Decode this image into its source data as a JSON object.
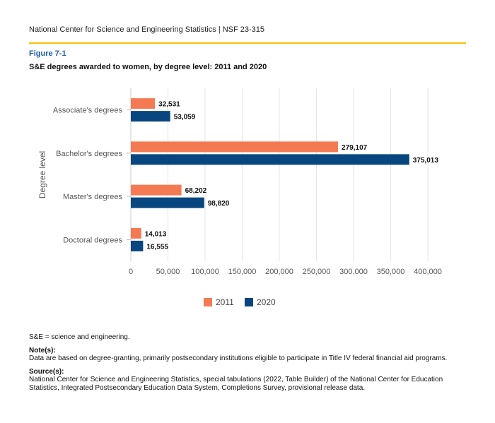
{
  "header": {
    "text": "National Center for Science and Engineering Statistics  |  NSF 23-315"
  },
  "figure": {
    "label": "Figure 7-1",
    "title": "S&E degrees awarded to women, by degree level: 2011 and 2020"
  },
  "colors": {
    "series_2011": "#f47a54",
    "series_2020": "#08467f",
    "grid": "#e6e6e6",
    "accent_rule": "#f2c200"
  },
  "chart_data": {
    "type": "bar",
    "orientation": "horizontal",
    "categories": [
      "Associate's degrees",
      "Bachelor's degrees",
      "Master's degrees",
      "Doctoral degrees"
    ],
    "series": [
      {
        "name": "2011",
        "values": [
          32531,
          279107,
          68202,
          14013
        ],
        "labels": [
          "32,531",
          "279,107",
          "68,202",
          "14,013"
        ]
      },
      {
        "name": "2020",
        "values": [
          53059,
          375013,
          98820,
          16555
        ],
        "labels": [
          "53,059",
          "375,013",
          "98,820",
          "16,555"
        ]
      }
    ],
    "ylabel": "Degree level",
    "xlabel": "",
    "xlim": [
      0,
      400000
    ],
    "xticks": [
      0,
      50000,
      100000,
      150000,
      200000,
      250000,
      300000,
      350000,
      400000
    ],
    "xtick_labels": [
      "0",
      "50,000",
      "100,000",
      "150,000",
      "200,000",
      "250,000",
      "300,000",
      "350,000",
      "400,000"
    ],
    "grid": true,
    "legend_placement": "bottom-center"
  },
  "footnotes": {
    "abbrev": "S&E = science and engineering.",
    "note_heading": "Note(s):",
    "note_text": "Data are based on degree-granting, primarily postsecondary institutions eligible to participate in Title IV federal financial aid programs.",
    "source_heading": "Source(s):",
    "source_text": "National Center for Science and Engineering Statistics, special tabulations (2022, Table Builder) of the National Center for Education Statistics, Integrated Postsecondary Education Data System, Completions Survey, provisional release data."
  }
}
